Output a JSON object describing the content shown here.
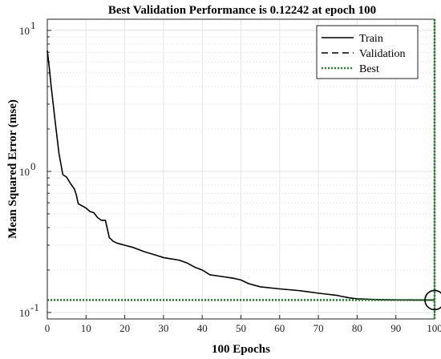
{
  "chart_data": {
    "type": "line",
    "title": "Best Validation Performance is 0.12242 at epoch 100",
    "xlabel": "100 Epochs",
    "ylabel": "Mean Squared Error  (mse)",
    "xlim": [
      0,
      100
    ],
    "ylim": [
      0.09,
      12
    ],
    "yscale": "log",
    "grid": true,
    "legend_position": "top-right",
    "x_ticks": [
      0,
      10,
      20,
      30,
      40,
      50,
      60,
      70,
      80,
      90,
      100
    ],
    "x_tick_labels": [
      "0",
      "10",
      "20",
      "30",
      "40",
      "50",
      "60",
      "70",
      "80",
      "90",
      "100"
    ],
    "y_ticks": [
      0.1,
      1,
      10
    ],
    "y_tick_labels": [
      {
        "base": "10",
        "exp": "-1"
      },
      {
        "base": "10",
        "exp": "0"
      },
      {
        "base": "10",
        "exp": "1"
      }
    ],
    "series": [
      {
        "name": "Train",
        "style": "solid",
        "color": "#000000",
        "x": [
          0,
          0.5,
          1,
          2,
          3,
          4,
          5,
          6,
          7,
          7.5,
          8,
          9,
          10,
          11,
          12,
          13,
          14,
          15,
          16,
          17,
          18,
          20,
          22,
          25,
          28,
          30,
          32,
          34,
          36,
          38,
          40,
          42,
          45,
          48,
          50,
          52,
          55,
          60,
          65,
          70,
          72,
          75,
          76,
          78,
          80,
          85,
          90,
          95,
          100
        ],
        "y": [
          7.2,
          5.5,
          4.0,
          2.3,
          1.35,
          0.95,
          0.91,
          0.82,
          0.75,
          0.68,
          0.59,
          0.57,
          0.55,
          0.52,
          0.51,
          0.47,
          0.45,
          0.45,
          0.34,
          0.32,
          0.31,
          0.3,
          0.29,
          0.27,
          0.255,
          0.245,
          0.24,
          0.235,
          0.225,
          0.21,
          0.2,
          0.185,
          0.18,
          0.175,
          0.17,
          0.16,
          0.152,
          0.147,
          0.143,
          0.137,
          0.135,
          0.132,
          0.13,
          0.127,
          0.125,
          0.1235,
          0.1228,
          0.1225,
          0.12242
        ]
      },
      {
        "name": "Validation",
        "style": "dashed",
        "color": "#000000",
        "x": [],
        "y": []
      },
      {
        "name": "Best",
        "style": "dotted",
        "color": "#1a8c1a",
        "best_epoch": 100,
        "best_value": 0.12242
      }
    ]
  }
}
